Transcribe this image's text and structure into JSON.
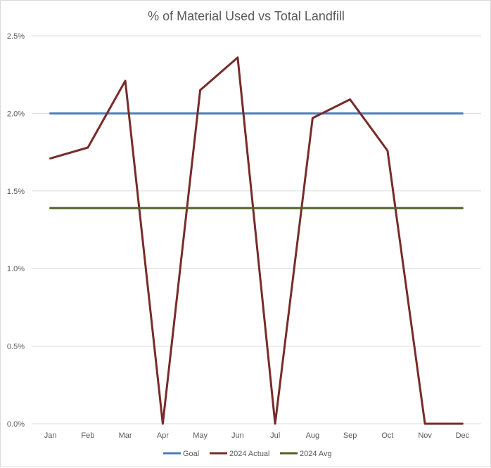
{
  "chart_data": {
    "type": "line",
    "title": "% of Material Used vs Total Landfill",
    "xlabel": "",
    "ylabel": "",
    "categories": [
      "Jan",
      "Feb",
      "Mar",
      "Apr",
      "May",
      "Jun",
      "Jul",
      "Aug",
      "Sep",
      "Oct",
      "Nov",
      "Dec"
    ],
    "ylim": [
      0,
      2.5
    ],
    "yticks": [
      0,
      0.5,
      1.0,
      1.5,
      2.0,
      2.5
    ],
    "ytick_labels": [
      "0.0%",
      "0.5%",
      "1.0%",
      "1.5%",
      "2.0%",
      "2.5%"
    ],
    "grid": true,
    "legend_position": "bottom",
    "series": [
      {
        "name": "Goal",
        "color": "#4a7ebb",
        "values": [
          2.0,
          2.0,
          2.0,
          2.0,
          2.0,
          2.0,
          2.0,
          2.0,
          2.0,
          2.0,
          2.0,
          2.0
        ]
      },
      {
        "name": "2024 Actual",
        "color": "#772c2a",
        "values": [
          1.71,
          1.78,
          2.21,
          0.0,
          2.15,
          2.36,
          0.0,
          1.97,
          2.09,
          1.76,
          0.0,
          0.0
        ]
      },
      {
        "name": "2024 Avg",
        "color": "#4f6228",
        "values": [
          1.39,
          1.39,
          1.39,
          1.39,
          1.39,
          1.39,
          1.39,
          1.39,
          1.39,
          1.39,
          1.39,
          1.39
        ]
      }
    ]
  }
}
